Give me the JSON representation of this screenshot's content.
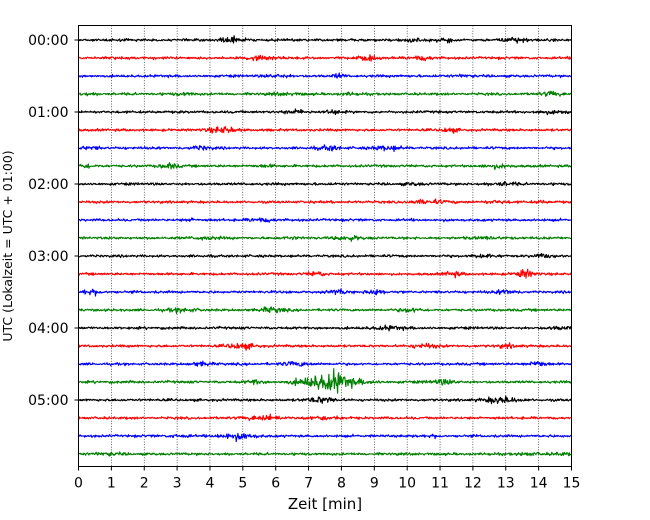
{
  "chart_data": {
    "type": "line",
    "title": "",
    "xlabel": "Zeit  [min]",
    "ylabel": "UTC (Lokalzeit = UTC + 01:00)",
    "xlim": [
      0,
      15
    ],
    "xticks": [
      0,
      1,
      2,
      3,
      4,
      5,
      6,
      7,
      8,
      9,
      10,
      11,
      12,
      13,
      14,
      15
    ],
    "yticks": [
      "00:00",
      "01:00",
      "02:00",
      "03:00",
      "04:00",
      "05:00"
    ],
    "grid": "vertical dotted",
    "trace_interval_min": 15,
    "trace_count": 24,
    "color_cycle": [
      "#000000",
      "#ff0000",
      "#0000ff",
      "#008000"
    ],
    "events": [
      {
        "trace_start": "04:45",
        "start_min": 6.0,
        "peak_min": 7.8,
        "end_min": 9.2,
        "relative_amplitude": 10
      }
    ]
  }
}
